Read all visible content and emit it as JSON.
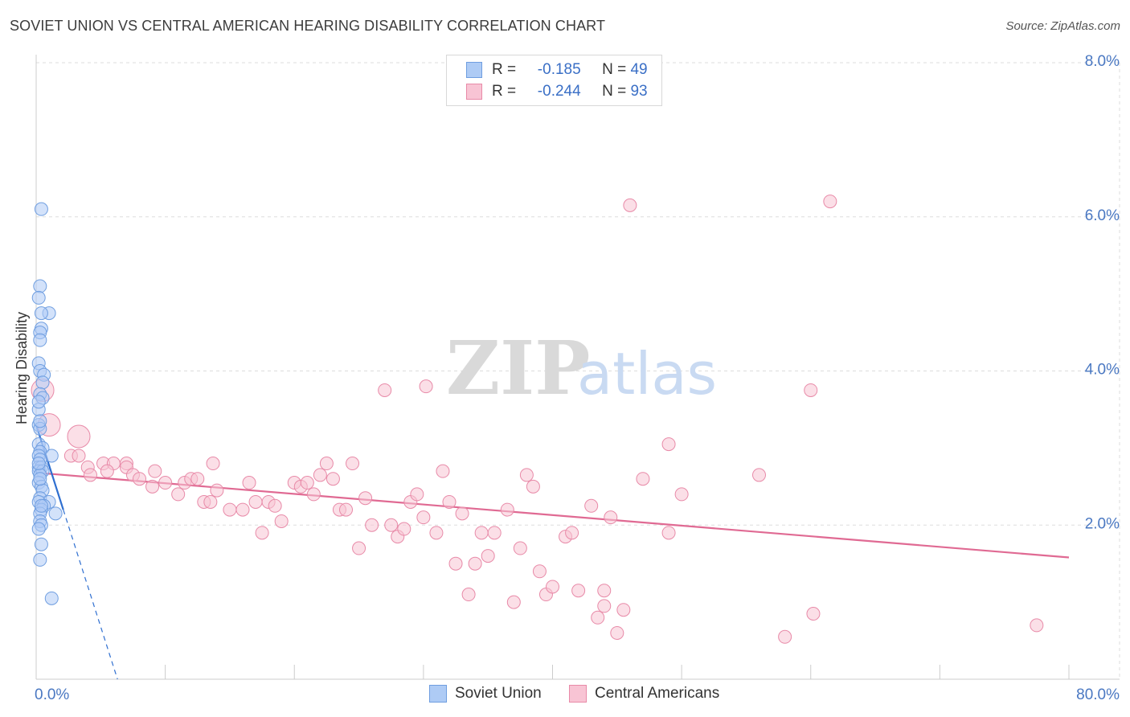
{
  "header": {
    "title": "SOVIET UNION VS CENTRAL AMERICAN HEARING DISABILITY CORRELATION CHART",
    "source": "Source: ZipAtlas.com"
  },
  "watermark": {
    "zip": "ZIP",
    "atlas": "atlas"
  },
  "legend": {
    "rows": [
      {
        "r_label": "R =",
        "r_value": "-0.185",
        "n_label": "N =",
        "n_value": "49",
        "color": "#aecbf5",
        "border": "#6f9ee0"
      },
      {
        "r_label": "R =",
        "r_value": "-0.244",
        "n_label": "N =",
        "n_value": "93",
        "color": "#f8c4d4",
        "border": "#e88aa8"
      }
    ]
  },
  "bottom_legend": [
    {
      "label": "Soviet Union",
      "color": "#aecbf5",
      "border": "#6f9ee0"
    },
    {
      "label": "Central Americans",
      "color": "#f8c4d4",
      "border": "#e88aa8"
    }
  ],
  "chart_data": {
    "type": "scatter",
    "title": "SOVIET UNION VS CENTRAL AMERICAN HEARING DISABILITY CORRELATION CHART",
    "ylabel": "Hearing Disability",
    "xlabel": "",
    "xlim": [
      0,
      80
    ],
    "ylim": [
      0,
      8
    ],
    "x_tick_labels": [
      "0.0%",
      "80.0%"
    ],
    "y_ticks": [
      2,
      4,
      6,
      8
    ],
    "y_tick_labels": [
      "2.0%",
      "4.0%",
      "6.0%",
      "8.0%"
    ],
    "grid": true,
    "series": [
      {
        "name": "Soviet Union",
        "color": "#aecbf5",
        "border": "#6f9ee0",
        "trend_color": "#2f6fd0",
        "trend": {
          "x0": 0.0,
          "y0": 3.3,
          "x1": 2.1,
          "y1": 2.2,
          "dash_to_x": 6.3,
          "dash_to_y": 0.0
        },
        "points": [
          [
            0.4,
            6.1
          ],
          [
            0.3,
            5.1
          ],
          [
            0.2,
            4.95
          ],
          [
            1.0,
            4.75
          ],
          [
            0.4,
            4.75
          ],
          [
            0.4,
            4.55
          ],
          [
            0.3,
            4.5
          ],
          [
            0.3,
            4.4
          ],
          [
            0.2,
            4.1
          ],
          [
            0.3,
            4.0
          ],
          [
            0.6,
            3.95
          ],
          [
            0.5,
            3.85
          ],
          [
            0.3,
            3.7
          ],
          [
            0.5,
            3.65
          ],
          [
            0.2,
            3.5
          ],
          [
            0.2,
            3.3
          ],
          [
            0.3,
            3.25
          ],
          [
            0.2,
            3.05
          ],
          [
            0.5,
            3.0
          ],
          [
            0.3,
            2.95
          ],
          [
            0.2,
            2.9
          ],
          [
            1.2,
            2.9
          ],
          [
            0.3,
            2.85
          ],
          [
            0.2,
            2.75
          ],
          [
            0.4,
            2.75
          ],
          [
            0.2,
            2.7
          ],
          [
            0.5,
            2.7
          ],
          [
            0.3,
            2.65
          ],
          [
            0.2,
            2.55
          ],
          [
            0.4,
            2.5
          ],
          [
            0.5,
            2.45
          ],
          [
            0.3,
            2.35
          ],
          [
            1.0,
            2.3
          ],
          [
            0.2,
            2.3
          ],
          [
            0.6,
            2.25
          ],
          [
            0.4,
            2.2
          ],
          [
            0.3,
            2.15
          ],
          [
            1.5,
            2.15
          ],
          [
            0.3,
            2.05
          ],
          [
            0.4,
            2.0
          ],
          [
            0.2,
            1.95
          ],
          [
            0.4,
            1.75
          ],
          [
            0.3,
            1.55
          ],
          [
            1.2,
            1.05
          ],
          [
            0.3,
            2.6
          ],
          [
            0.2,
            3.6
          ],
          [
            0.3,
            3.35
          ],
          [
            0.4,
            2.25
          ],
          [
            0.2,
            2.8
          ]
        ]
      },
      {
        "name": "Central Americans",
        "color": "#f8c4d4",
        "border": "#e88aa8",
        "trend_color": "#e06a93",
        "trend": {
          "x0": 0.0,
          "y0": 2.68,
          "x1": 80.0,
          "y1": 1.58
        },
        "points": [
          [
            0.5,
            3.75
          ],
          [
            1.0,
            3.3
          ],
          [
            3.3,
            3.15
          ],
          [
            4.0,
            2.75
          ],
          [
            2.7,
            2.9
          ],
          [
            3.3,
            2.9
          ],
          [
            5.2,
            2.8
          ],
          [
            6.0,
            2.8
          ],
          [
            5.5,
            2.7
          ],
          [
            4.2,
            2.65
          ],
          [
            7.0,
            2.8
          ],
          [
            7.0,
            2.75
          ],
          [
            7.5,
            2.65
          ],
          [
            8.0,
            2.6
          ],
          [
            9.0,
            2.5
          ],
          [
            9.2,
            2.7
          ],
          [
            10.0,
            2.55
          ],
          [
            11.0,
            2.4
          ],
          [
            11.5,
            2.55
          ],
          [
            12.0,
            2.6
          ],
          [
            12.5,
            2.6
          ],
          [
            13.0,
            2.3
          ],
          [
            13.5,
            2.3
          ],
          [
            14.0,
            2.45
          ],
          [
            13.7,
            2.8
          ],
          [
            15.0,
            2.2
          ],
          [
            16.0,
            2.2
          ],
          [
            16.5,
            2.55
          ],
          [
            17.0,
            2.3
          ],
          [
            17.5,
            1.9
          ],
          [
            18.0,
            2.3
          ],
          [
            18.5,
            2.25
          ],
          [
            19.0,
            2.05
          ],
          [
            20.0,
            2.55
          ],
          [
            20.5,
            2.5
          ],
          [
            21.0,
            2.55
          ],
          [
            21.5,
            2.4
          ],
          [
            22.0,
            2.65
          ],
          [
            22.5,
            2.8
          ],
          [
            23.0,
            2.6
          ],
          [
            23.5,
            2.2
          ],
          [
            24.0,
            2.2
          ],
          [
            24.5,
            2.8
          ],
          [
            25.0,
            1.7
          ],
          [
            25.5,
            2.35
          ],
          [
            26.0,
            2.0
          ],
          [
            27.0,
            3.75
          ],
          [
            27.5,
            2.0
          ],
          [
            28.0,
            1.85
          ],
          [
            28.5,
            1.95
          ],
          [
            29.0,
            2.3
          ],
          [
            29.5,
            2.4
          ],
          [
            30.0,
            2.1
          ],
          [
            30.2,
            3.8
          ],
          [
            31.0,
            1.9
          ],
          [
            31.5,
            2.7
          ],
          [
            32.0,
            2.3
          ],
          [
            32.5,
            1.5
          ],
          [
            33.0,
            2.15
          ],
          [
            33.5,
            1.1
          ],
          [
            34.0,
            1.5
          ],
          [
            34.5,
            1.9
          ],
          [
            35.0,
            1.6
          ],
          [
            35.5,
            1.9
          ],
          [
            36.5,
            2.2
          ],
          [
            37.0,
            1.0
          ],
          [
            37.5,
            1.7
          ],
          [
            38.0,
            2.65
          ],
          [
            38.5,
            2.5
          ],
          [
            39.0,
            1.4
          ],
          [
            39.5,
            1.1
          ],
          [
            40.0,
            1.2
          ],
          [
            41.0,
            1.85
          ],
          [
            41.5,
            1.9
          ],
          [
            42.0,
            1.15
          ],
          [
            43.0,
            2.25
          ],
          [
            43.5,
            0.8
          ],
          [
            44.0,
            1.15
          ],
          [
            44.5,
            2.1
          ],
          [
            45.0,
            0.6
          ],
          [
            45.5,
            0.9
          ],
          [
            46.0,
            6.15
          ],
          [
            47.0,
            2.6
          ],
          [
            49.0,
            3.05
          ],
          [
            49.0,
            1.9
          ],
          [
            50.0,
            2.4
          ],
          [
            56.0,
            2.65
          ],
          [
            58.0,
            0.55
          ],
          [
            60.0,
            3.75
          ],
          [
            60.2,
            0.85
          ],
          [
            61.5,
            6.2
          ],
          [
            77.5,
            0.7
          ],
          [
            44.0,
            0.95
          ]
        ]
      }
    ]
  }
}
